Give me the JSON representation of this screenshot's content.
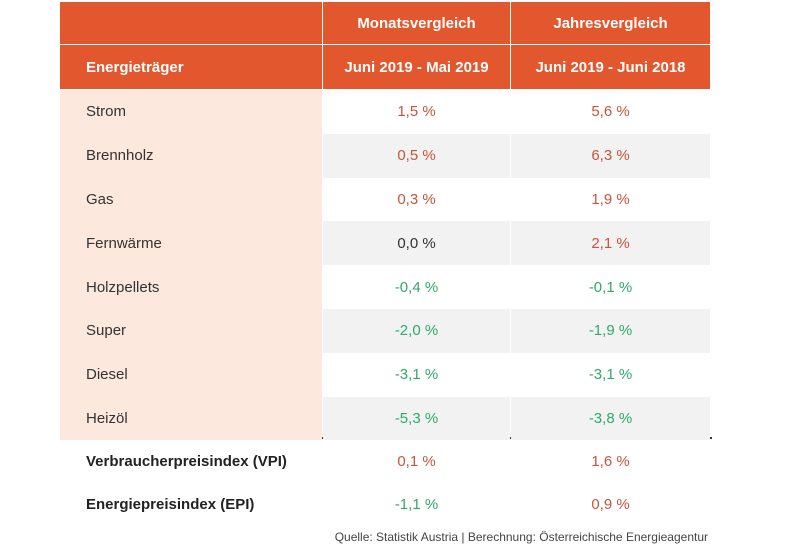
{
  "header": {
    "groups": [
      "Monatsvergleich",
      "Jahresvergleich"
    ],
    "columns": [
      "Energieträger",
      "Juni 2019 - Mai 2019",
      "Juni 2019 - Juni 2018"
    ]
  },
  "table": {
    "rows": [
      [
        "Strom",
        "1,5 %",
        "5,6 %"
      ],
      [
        "Brennholz",
        "0,5 %",
        "6,3 %"
      ],
      [
        "Gas",
        "0,3 %",
        "1,9 %"
      ],
      [
        "Fernwärme",
        "0,0 %",
        "2,1 %"
      ],
      [
        "Holzpellets",
        "-0,4 %",
        "-0,1 %"
      ],
      [
        "Super",
        "-2,0 %",
        "-1,9 %"
      ],
      [
        "Diesel",
        "-3,1 %",
        "-3,1 %"
      ],
      [
        "Heizöl",
        "-5,3 %",
        "-3,8 %"
      ]
    ],
    "summary_rows": [
      [
        "Verbraucherpreisindex (VPI)",
        "0,1 %",
        "1,6 %"
      ],
      [
        "Energiepreisindex (EPI)",
        "-1,1 %",
        "0,9 %"
      ]
    ]
  },
  "source": "Quelle: Statistik Austria | Berechnung: Österreichische Energieagentur"
}
